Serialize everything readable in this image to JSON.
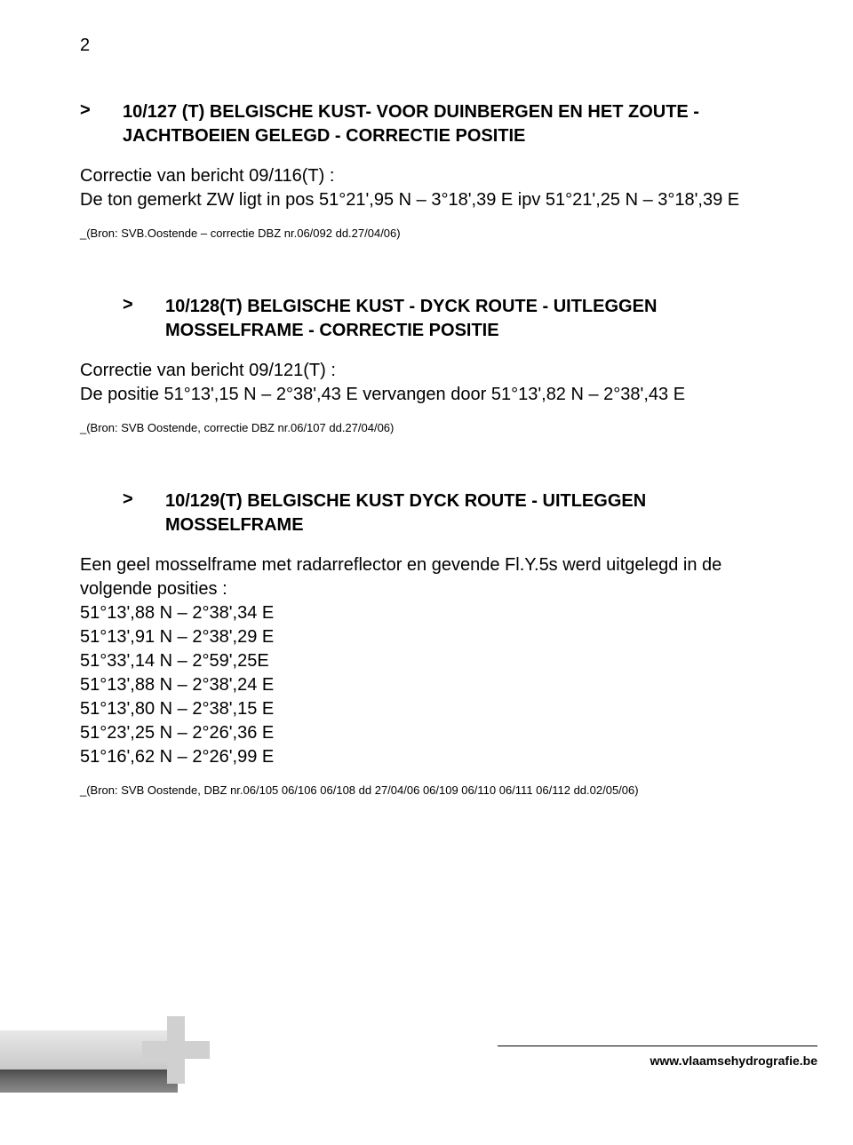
{
  "page_number": "2",
  "notices": [
    {
      "indented": false,
      "title": "10/127 (T) BELGISCHE KUST- VOOR DUINBERGEN EN HET ZOUTE - JACHTBOEIEN GELEGD - CORRECTIE POSITIE",
      "body": "Correctie van bericht 09/116(T) :\nDe ton gemerkt ZW ligt in pos 51°21',95 N – 3°18',39 E ipv 51°21',25 N – 3°18',39 E",
      "source": "_(Bron: SVB.Oostende – correctie DBZ nr.06/092 dd.27/04/06)"
    },
    {
      "indented": true,
      "title": "10/128(T) BELGISCHE KUST - DYCK ROUTE - UITLEGGEN MOSSELFRAME - CORRECTIE POSITIE",
      "body": "Correctie van bericht 09/121(T) :\nDe positie 51°13',15 N – 2°38',43 E vervangen door 51°13',82 N – 2°38',43 E",
      "source": "_(Bron: SVB Oostende, correctie DBZ nr.06/107 dd.27/04/06)"
    },
    {
      "indented": true,
      "title": "10/129(T) BELGISCHE KUST DYCK ROUTE - UITLEGGEN MOSSELFRAME",
      "body": "Een geel mosselframe met radarreflector en gevende Fl.Y.5s werd uitgelegd in de volgende posities :\n51°13',88 N – 2°38',34 E\n51°13',91 N – 2°38',29 E\n51°33',14 N – 2°59',25E\n51°13',88 N – 2°38',24 E\n51°13',80 N – 2°38',15 E\n51°23',25 N – 2°26',36 E\n51°16',62 N – 2°26',99 E",
      "source": "_(Bron: SVB Oostende, DBZ nr.06/105 06/106 06/108 dd 27/04/06 06/109 06/110 06/111 06/112 dd.02/05/06)"
    }
  ],
  "footer_url": "www.vlaamsehydrografie.be",
  "gt_symbol": ">"
}
